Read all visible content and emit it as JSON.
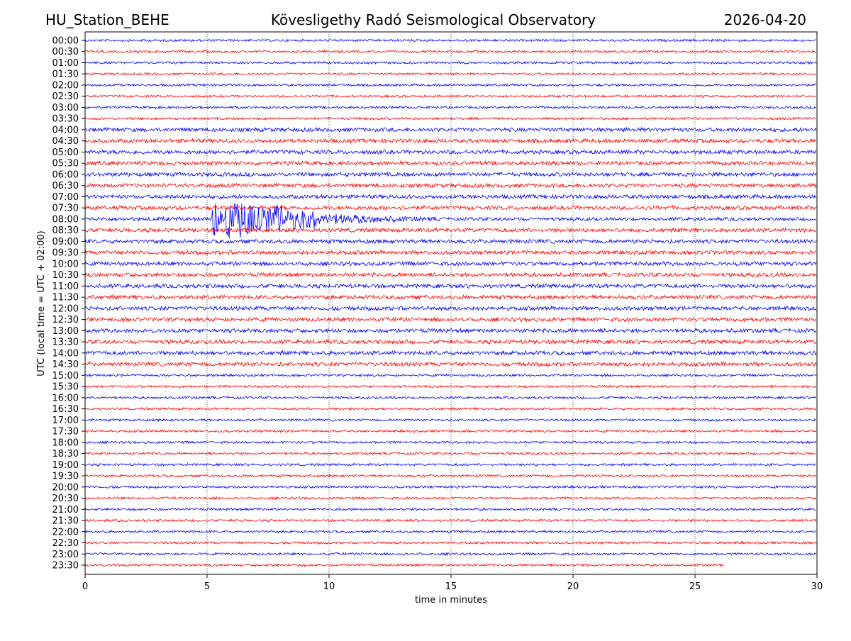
{
  "header": {
    "station": "HU_Station_BEHE",
    "observatory": "Kövesligethy Radó Seismological Observatory",
    "date": "2026-04-20"
  },
  "chart_data": {
    "type": "line",
    "subtype": "helicorder",
    "xlabel": "time in minutes",
    "ylabel": "UTC (local time = UTC + 02:00)",
    "xlim": [
      0,
      30
    ],
    "xticks": [
      "0",
      "5",
      "10",
      "15",
      "20",
      "25",
      "30"
    ],
    "grid": "vertical dotted lines at x ticks",
    "row_labels": [
      "00:00",
      "00:30",
      "01:00",
      "01:30",
      "02:00",
      "02:30",
      "03:00",
      "03:30",
      "04:00",
      "04:30",
      "05:00",
      "05:30",
      "06:00",
      "06:30",
      "07:00",
      "07:30",
      "08:00",
      "08:30",
      "09:00",
      "09:30",
      "10:00",
      "10:30",
      "11:00",
      "11:30",
      "12:00",
      "12:30",
      "13:00",
      "13:30",
      "14:00",
      "14:30",
      "15:00",
      "15:30",
      "16:00",
      "16:30",
      "17:00",
      "17:30",
      "18:00",
      "18:30",
      "19:00",
      "19:30",
      "20:00",
      "20:30",
      "21:00",
      "21:30",
      "22:00",
      "22:30",
      "23:00",
      "23:30"
    ],
    "colors": [
      "#0000ff",
      "#ff0000"
    ],
    "event": {
      "row": "08:00",
      "onset_minute": 5.2,
      "peak_end_minute": 9.5,
      "coda_end_minute": 20
    },
    "last_row_end_minute": 26.2
  }
}
